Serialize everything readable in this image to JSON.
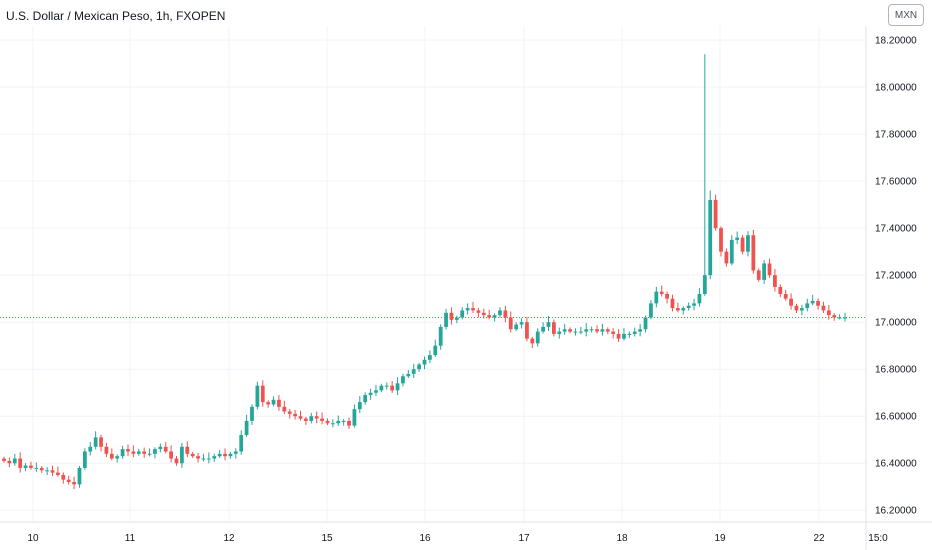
{
  "header": {
    "title": "U.S. Dollar / Mexican Peso, 1h, FXOPEN",
    "currency_button": "MXN"
  },
  "chart_data": {
    "type": "candlestick",
    "symbol": "U.S. Dollar / Mexican Peso",
    "interval": "1h",
    "exchange": "FXOPEN",
    "y_ticks": [
      "18.20000",
      "18.00000",
      "17.80000",
      "17.60000",
      "17.40000",
      "17.20000",
      "17.00000",
      "16.80000",
      "16.60000",
      "16.40000",
      "16.20000"
    ],
    "x_ticks": [
      "10",
      "11",
      "12",
      "15",
      "16",
      "17",
      "18",
      "19",
      "22",
      "15:0"
    ],
    "ylim": [
      16.15,
      18.26
    ],
    "grid": true,
    "last_price_line": 17.02,
    "colors": {
      "up": "#26a69a",
      "down": "#ef5350",
      "grid": "#f0f3fa",
      "price_line": "#ef5350"
    },
    "closes": [
      16.41,
      16.4,
      16.42,
      16.38,
      16.39,
      16.38,
      16.38,
      16.37,
      16.37,
      16.36,
      16.35,
      16.33,
      16.32,
      16.31,
      16.38,
      16.45,
      16.47,
      16.51,
      16.47,
      16.44,
      16.42,
      16.43,
      16.46,
      16.45,
      16.44,
      16.45,
      16.44,
      16.44,
      16.46,
      16.47,
      16.45,
      16.42,
      16.4,
      16.47,
      16.44,
      16.43,
      16.42,
      16.42,
      16.42,
      16.43,
      16.44,
      16.43,
      16.44,
      16.45,
      16.52,
      16.58,
      16.64,
      16.73,
      16.66,
      16.65,
      16.67,
      16.64,
      16.62,
      16.61,
      16.6,
      16.59,
      16.58,
      16.6,
      16.59,
      16.58,
      16.57,
      16.57,
      16.58,
      16.58,
      16.56,
      16.63,
      16.66,
      16.69,
      16.7,
      16.71,
      16.73,
      16.73,
      16.71,
      16.74,
      16.77,
      16.78,
      16.8,
      16.82,
      16.84,
      16.86,
      16.9,
      16.98,
      17.04,
      17.01,
      17.02,
      17.05,
      17.06,
      17.05,
      17.04,
      17.03,
      17.02,
      17.03,
      17.05,
      17.02,
      16.97,
      16.99,
      17.0,
      16.93,
      16.91,
      16.96,
      16.98,
      17.0,
      16.95,
      16.96,
      16.97,
      16.96,
      16.96,
      16.96,
      16.97,
      16.97,
      16.96,
      16.97,
      16.96,
      16.95,
      16.93,
      16.95,
      16.95,
      16.96,
      16.97,
      17.02,
      17.08,
      17.13,
      17.12,
      17.1,
      17.06,
      17.05,
      17.06,
      17.07,
      17.08,
      17.12,
      17.2,
      17.52,
      17.4,
      17.3,
      17.25,
      17.35,
      17.36,
      17.3,
      17.37,
      17.22,
      17.18,
      17.25,
      17.2,
      17.15,
      17.12,
      17.1,
      17.07,
      17.05,
      17.06,
      17.08,
      17.09,
      17.07,
      17.05,
      17.03,
      17.02,
      17.02,
      17.02
    ],
    "spikes": [
      {
        "index": 130,
        "high": 18.14
      },
      {
        "index": 131,
        "high": 17.56
      }
    ]
  }
}
